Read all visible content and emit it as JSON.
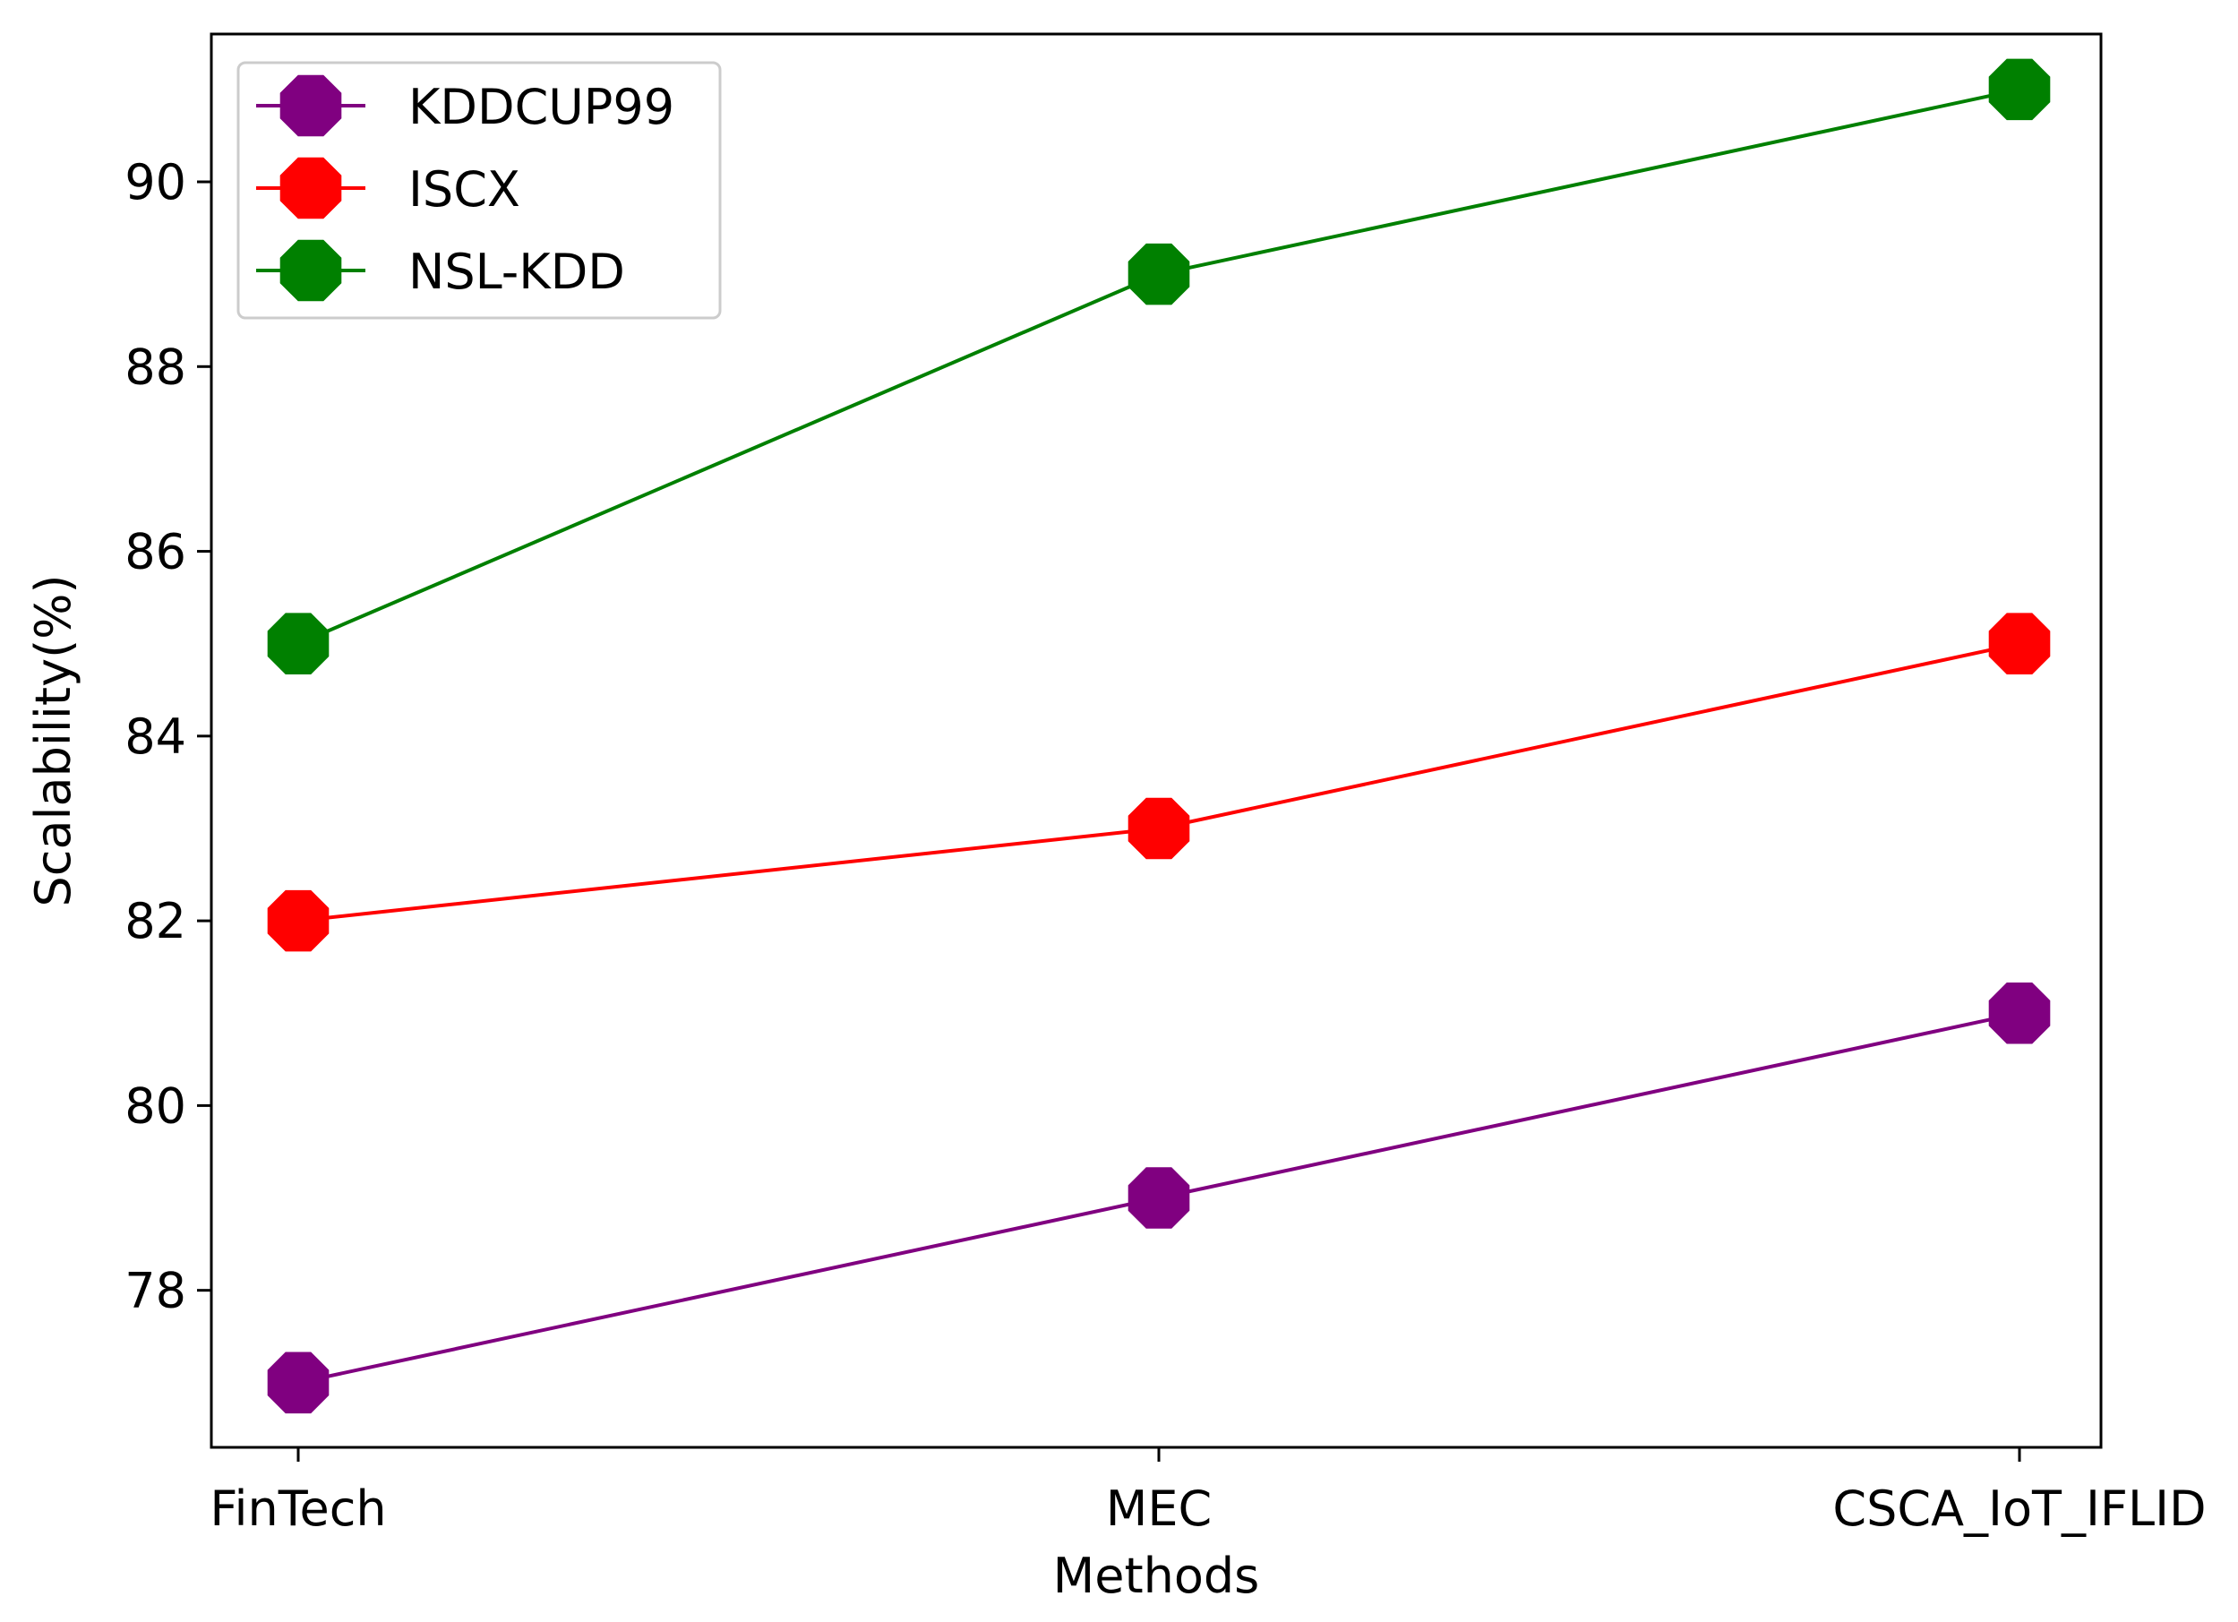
{
  "chart_data": {
    "type": "line",
    "title": "",
    "xlabel": "Methods",
    "ylabel": "Scalability(%)",
    "categories": [
      "FinTech",
      "MEC",
      "CSCA_IoT_IFLID"
    ],
    "ylim": [
      76.3,
      91.6
    ],
    "yticks": [
      78,
      80,
      82,
      84,
      86,
      88,
      90
    ],
    "grid": false,
    "legend_position": "top-left",
    "marker": "octagon",
    "series": [
      {
        "name": "KDDCUP99",
        "color": "#800080",
        "values": [
          77,
          79,
          81
        ]
      },
      {
        "name": "ISCX",
        "color": "#ff0000",
        "values": [
          82,
          83,
          85
        ]
      },
      {
        "name": "NSL-KDD",
        "color": "#008000",
        "values": [
          85,
          89,
          91
        ]
      }
    ]
  }
}
